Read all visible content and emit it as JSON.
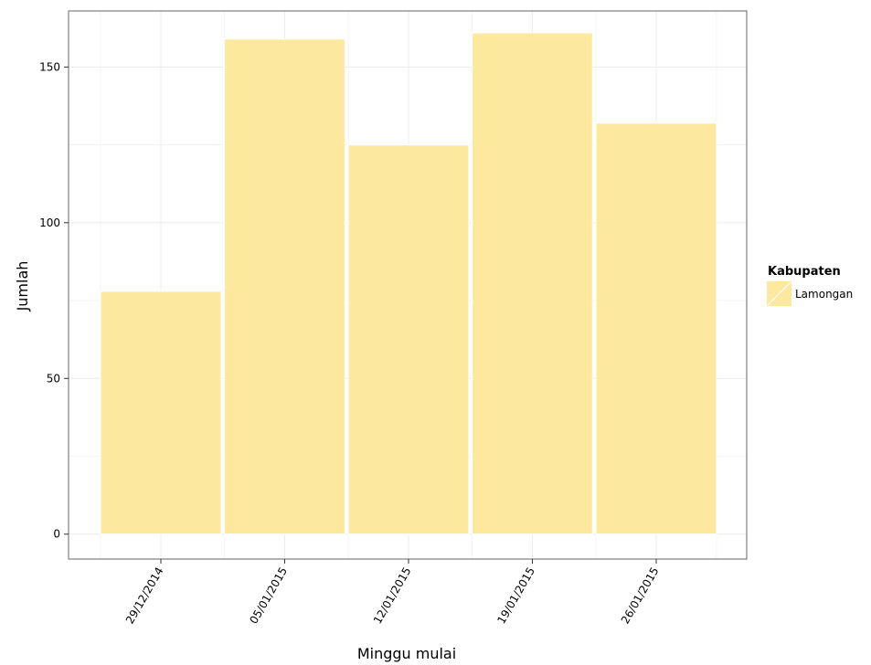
{
  "chart_data": {
    "type": "bar",
    "categories": [
      "29/12/2014",
      "05/01/2015",
      "12/01/2015",
      "19/01/2015",
      "26/01/2015"
    ],
    "series": [
      {
        "name": "Lamongan",
        "values": [
          78,
          159,
          125,
          161,
          132
        ]
      }
    ],
    "xlabel": "Minggu mulai",
    "ylabel": "Jumlah",
    "ylim": [
      -8,
      168
    ],
    "yticks": [
      0,
      50,
      100,
      150
    ],
    "grid": true,
    "legend": {
      "title": "Kabupaten",
      "position": "right"
    },
    "colors": {
      "bar": "#fde99d",
      "grid": "#ececec",
      "border": "#7f7f7f"
    }
  }
}
